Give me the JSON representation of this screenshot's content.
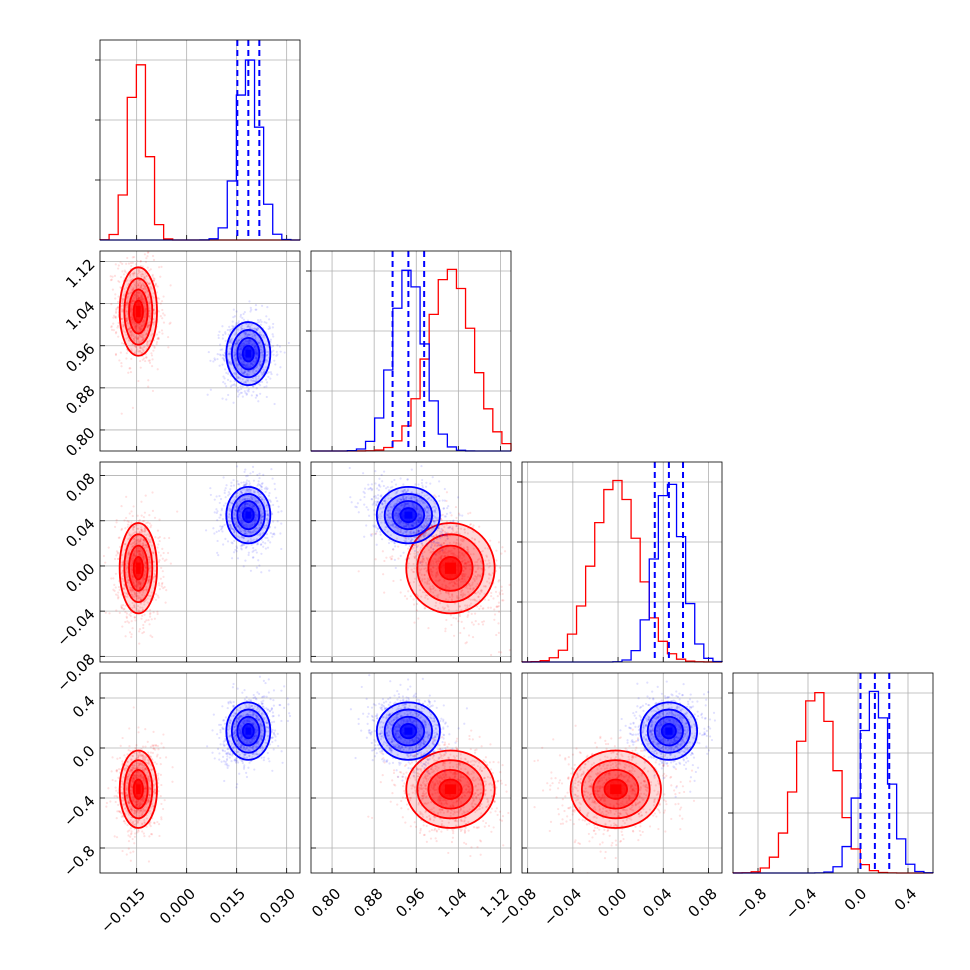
{
  "chart_data": {
    "type": "corner",
    "title": "",
    "parameters": [
      "",
      "",
      "",
      ""
    ],
    "ranges": [
      [
        -0.026,
        0.034
      ],
      [
        0.76,
        1.14
      ],
      [
        -0.085,
        0.092
      ],
      [
        -1.0,
        0.6
      ]
    ],
    "ticks": [
      [
        "−0.015",
        "0.000",
        "0.015",
        "0.030"
      ],
      [
        "0.80",
        "0.88",
        "0.96",
        "1.04",
        "1.12"
      ],
      [
        "−0.08",
        "−0.04",
        "0.00",
        "0.04",
        "0.08"
      ],
      [
        "−0.8",
        "−0.4",
        "0.0",
        "0.4"
      ]
    ],
    "tick_values": [
      [
        -0.015,
        0.0,
        0.015,
        0.03
      ],
      [
        0.8,
        0.88,
        0.96,
        1.04,
        1.12
      ],
      [
        -0.08,
        -0.04,
        0.0,
        0.04,
        0.08
      ],
      [
        -0.8,
        -0.4,
        0.0,
        0.4
      ]
    ],
    "series": [
      {
        "color": "#ff0000",
        "mean": [
          -0.0145,
          1.025,
          -0.002,
          -0.33
        ],
        "std": [
          0.0028,
          0.042,
          0.02,
          0.155
        ],
        "quantile_lines": false
      },
      {
        "color": "#0000ff",
        "mean": [
          0.0185,
          0.945,
          0.045,
          0.135
        ],
        "std": [
          0.0033,
          0.03,
          0.0125,
          0.115
        ],
        "quantile_lines": true
      }
    ],
    "correlations": {
      "0-1": [
        -0.1,
        0.05
      ],
      "0-2": [
        0.0,
        0.0
      ],
      "0-3": [
        0.15,
        0.3
      ],
      "1-2": [
        -0.35,
        -0.25
      ],
      "1-3": [
        -0.1,
        -0.1
      ],
      "2-3": [
        0.05,
        0.0
      ]
    },
    "grid": true,
    "legend": "none"
  }
}
